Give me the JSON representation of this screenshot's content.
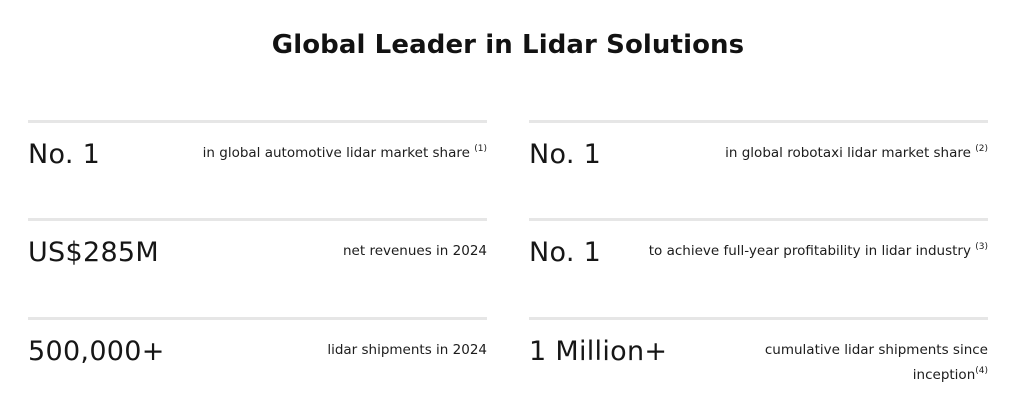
{
  "title": "Global Leader in Lidar Solutions",
  "stats": [
    {
      "value": "No. 1",
      "description": "in global automotive lidar market share",
      "footnote": "(1)"
    },
    {
      "value": "No. 1",
      "description": "in global robotaxi lidar market share",
      "footnote": "(2)"
    },
    {
      "value": "US$285M",
      "description": "net revenues in 2024",
      "footnote": ""
    },
    {
      "value": "No. 1",
      "description": "to achieve full-year profitability in lidar industry",
      "footnote": "(3)"
    },
    {
      "value": "500,000+",
      "description": "lidar shipments in 2024",
      "footnote": ""
    },
    {
      "value": "1 Million+",
      "description": "cumulative lidar shipments since inception",
      "footnote": "(4)"
    }
  ]
}
